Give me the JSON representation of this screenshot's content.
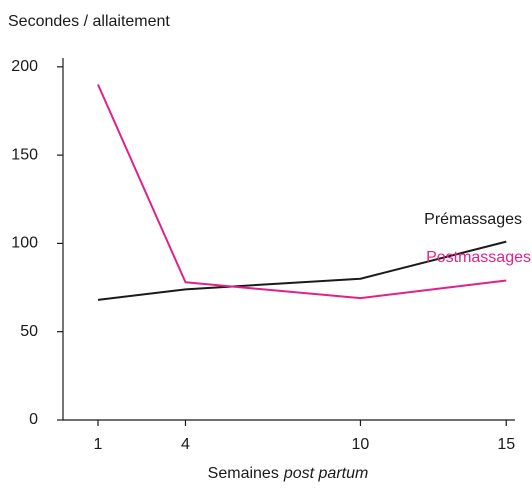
{
  "chart_data": {
    "type": "line",
    "title": "Secondes / allaitement",
    "xlabel": [
      "Semaines",
      "post partum"
    ],
    "x": [
      1,
      4,
      10,
      15
    ],
    "xlim": [
      -0.2,
      15.3
    ],
    "xticks": [
      1,
      4,
      10,
      15
    ],
    "ylim": [
      0,
      205
    ],
    "yticks": [
      0,
      50,
      100,
      150,
      200
    ],
    "grid": false,
    "series": [
      {
        "name": "Prémassages",
        "color": "#1a1a1a",
        "values": [
          68,
          74,
          80,
          101
        ]
      },
      {
        "name": "Postmassages",
        "color": "#e0218a",
        "values": [
          190,
          78,
          69,
          79
        ]
      }
    ]
  }
}
